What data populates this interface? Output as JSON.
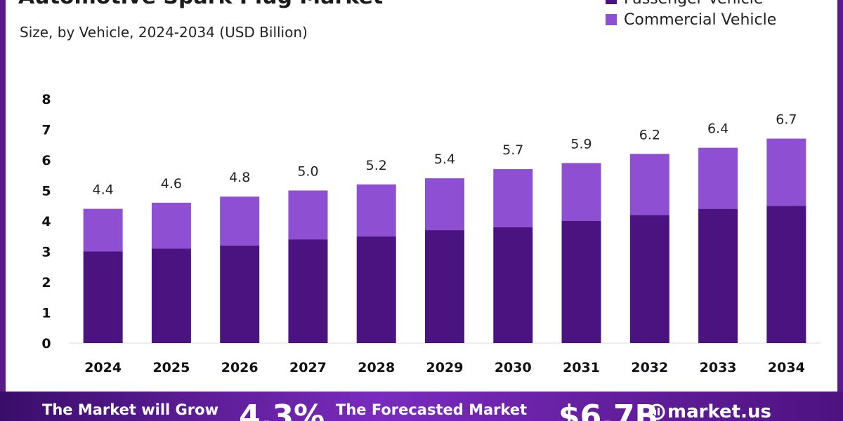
{
  "header": {
    "title": "Automotive Spark Plug Market",
    "subtitle": "Size, by Vehicle, 2024-2034 (USD Billion)"
  },
  "legend": [
    {
      "label": "Passenger Vehicle",
      "color": "#4b1380"
    },
    {
      "label": "Commercial Vehicle",
      "color": "#8e4fd2"
    }
  ],
  "chart_data": {
    "type": "bar",
    "stacked": true,
    "categories": [
      "2024",
      "2025",
      "2026",
      "2027",
      "2028",
      "2029",
      "2030",
      "2031",
      "2032",
      "2033",
      "2034"
    ],
    "series": [
      {
        "name": "Passenger Vehicle",
        "color": "#4b1380",
        "values": [
          3.0,
          3.1,
          3.2,
          3.4,
          3.5,
          3.7,
          3.8,
          4.0,
          4.2,
          4.4,
          4.5
        ]
      },
      {
        "name": "Commercial Vehicle",
        "color": "#8e4fd2",
        "values": [
          1.4,
          1.5,
          1.6,
          1.6,
          1.7,
          1.7,
          1.9,
          1.9,
          2.0,
          2.0,
          2.2
        ]
      }
    ],
    "totals": [
      "4.4",
      "4.6",
      "4.8",
      "5.0",
      "5.2",
      "5.4",
      "5.7",
      "5.9",
      "6.2",
      "6.4",
      "6.7"
    ],
    "yticks": [
      "0",
      "1",
      "2",
      "3",
      "4",
      "5",
      "6",
      "7",
      "8"
    ],
    "ylim": [
      0,
      8
    ],
    "grid": false
  },
  "banner": {
    "grow_text": "The Market will Grow",
    "cagr": "4.3%",
    "forecast_text": "The Forecasted Market",
    "forecast_value": "$6.7B",
    "brand": "market.us"
  }
}
